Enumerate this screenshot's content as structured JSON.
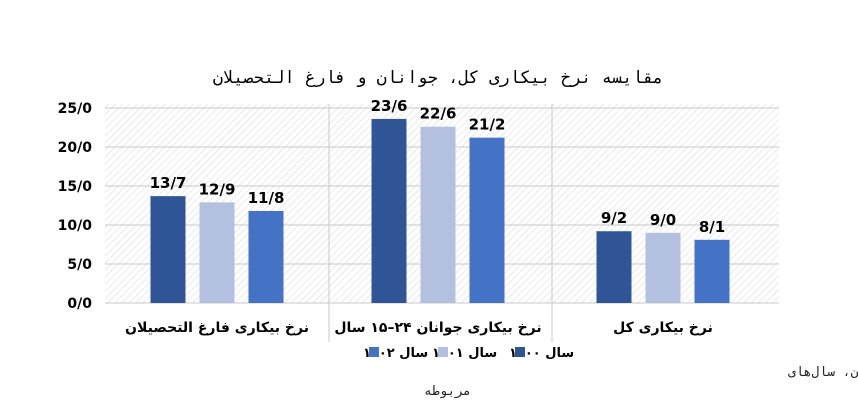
{
  "chart_data": {
    "type": "bar",
    "title": "مقایسه نرخ بیکاری کل، جوانان و فارغ التحصیلان",
    "categories": [
      "نرخ بیکاری کل",
      "نرخ بیکاری جوانان ۲۴–۱۵ سال",
      "نرخ بیکاری فارغ التحصیلان"
    ],
    "series": [
      {
        "name": "سال ۱۴۰۰",
        "values": [
          9.2,
          23.6,
          13.7
        ],
        "labels": [
          "9/2",
          "23/6",
          "13/7"
        ],
        "color": "#2f5597"
      },
      {
        "name": "سال ۱۴۰۱",
        "values": [
          9.0,
          22.6,
          12.9
        ],
        "labels": [
          "9/0",
          "22/6",
          "12/9"
        ],
        "color": "#b4c0e0"
      },
      {
        "name": "سال ۱۴۰۲",
        "values": [
          8.1,
          21.2,
          11.8
        ],
        "labels": [
          "8/1",
          "21/2",
          "11/8"
        ],
        "color": "#4472c4"
      }
    ],
    "y_ticks": [
      {
        "value": 0,
        "label": "0/0"
      },
      {
        "value": 5,
        "label": "5/0"
      },
      {
        "value": 10,
        "label": "10/0"
      },
      {
        "value": 15,
        "label": "15/0"
      },
      {
        "value": 20,
        "label": "20/0"
      },
      {
        "value": 25,
        "label": "25/0"
      }
    ],
    "ylim": [
      0,
      26
    ],
    "xlabel": "",
    "ylabel": "",
    "grid": true,
    "legend_position": "bottom-center",
    "source_note_line1": "ماخذ: محاسبه بر اساس نتایج طرح آمارگیری نیروی کار، مرکز آمار ایران، سال‌های",
    "source_note_line2": "مربوطه"
  }
}
